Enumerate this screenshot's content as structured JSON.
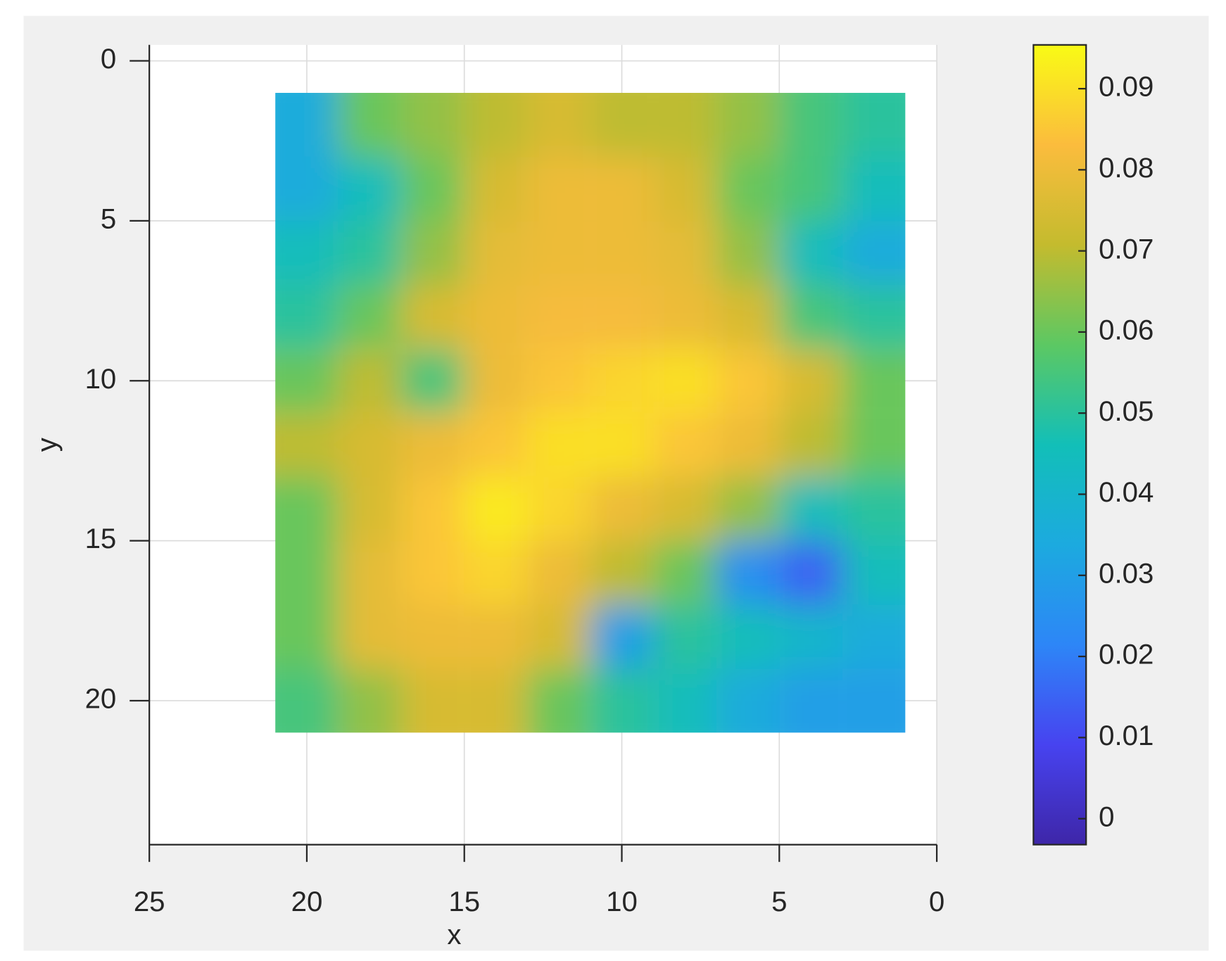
{
  "chart_data": {
    "type": "heatmap",
    "x_label": "x",
    "y_label": "y",
    "x": [
      20,
      18,
      16,
      14,
      12,
      10,
      8,
      6,
      4,
      2
    ],
    "y": [
      2,
      4,
      6,
      8,
      10,
      12,
      14,
      16,
      18,
      20
    ],
    "z": [
      [
        0.035,
        0.06,
        0.065,
        0.07,
        0.075,
        0.07,
        0.07,
        0.065,
        0.055,
        0.05
      ],
      [
        0.035,
        0.045,
        0.06,
        0.075,
        0.08,
        0.08,
        0.075,
        0.06,
        0.055,
        0.045
      ],
      [
        0.045,
        0.05,
        0.065,
        0.078,
        0.08,
        0.08,
        0.078,
        0.065,
        0.045,
        0.035
      ],
      [
        0.05,
        0.06,
        0.075,
        0.08,
        0.082,
        0.082,
        0.08,
        0.075,
        0.055,
        0.05
      ],
      [
        0.06,
        0.07,
        0.055,
        0.08,
        0.085,
        0.088,
        0.09,
        0.085,
        0.075,
        0.06
      ],
      [
        0.07,
        0.075,
        0.08,
        0.085,
        0.09,
        0.09,
        0.085,
        0.08,
        0.07,
        0.06
      ],
      [
        0.06,
        0.075,
        0.085,
        0.092,
        0.088,
        0.08,
        0.075,
        0.065,
        0.045,
        0.05
      ],
      [
        0.06,
        0.078,
        0.085,
        0.088,
        0.08,
        0.07,
        0.06,
        0.025,
        0.015,
        0.045
      ],
      [
        0.06,
        0.078,
        0.08,
        0.08,
        0.075,
        0.03,
        0.05,
        0.045,
        0.04,
        0.035
      ],
      [
        0.055,
        0.065,
        0.075,
        0.075,
        0.06,
        0.05,
        0.045,
        0.035,
        0.03,
        0.03
      ]
    ],
    "xlim": [
      25,
      0
    ],
    "xticks": [
      25,
      20,
      15,
      10,
      5,
      0
    ],
    "ylim": [
      -0.5,
      24.5
    ],
    "yticks": [
      0,
      5,
      10,
      15,
      20
    ],
    "y_reversed": true,
    "clim": [
      -0.0032,
      0.0954
    ],
    "cticks": [
      0,
      0.01,
      0.02,
      0.03,
      0.04,
      0.05,
      0.06,
      0.07,
      0.08,
      0.09
    ],
    "colormap": "parula",
    "grid": true
  }
}
